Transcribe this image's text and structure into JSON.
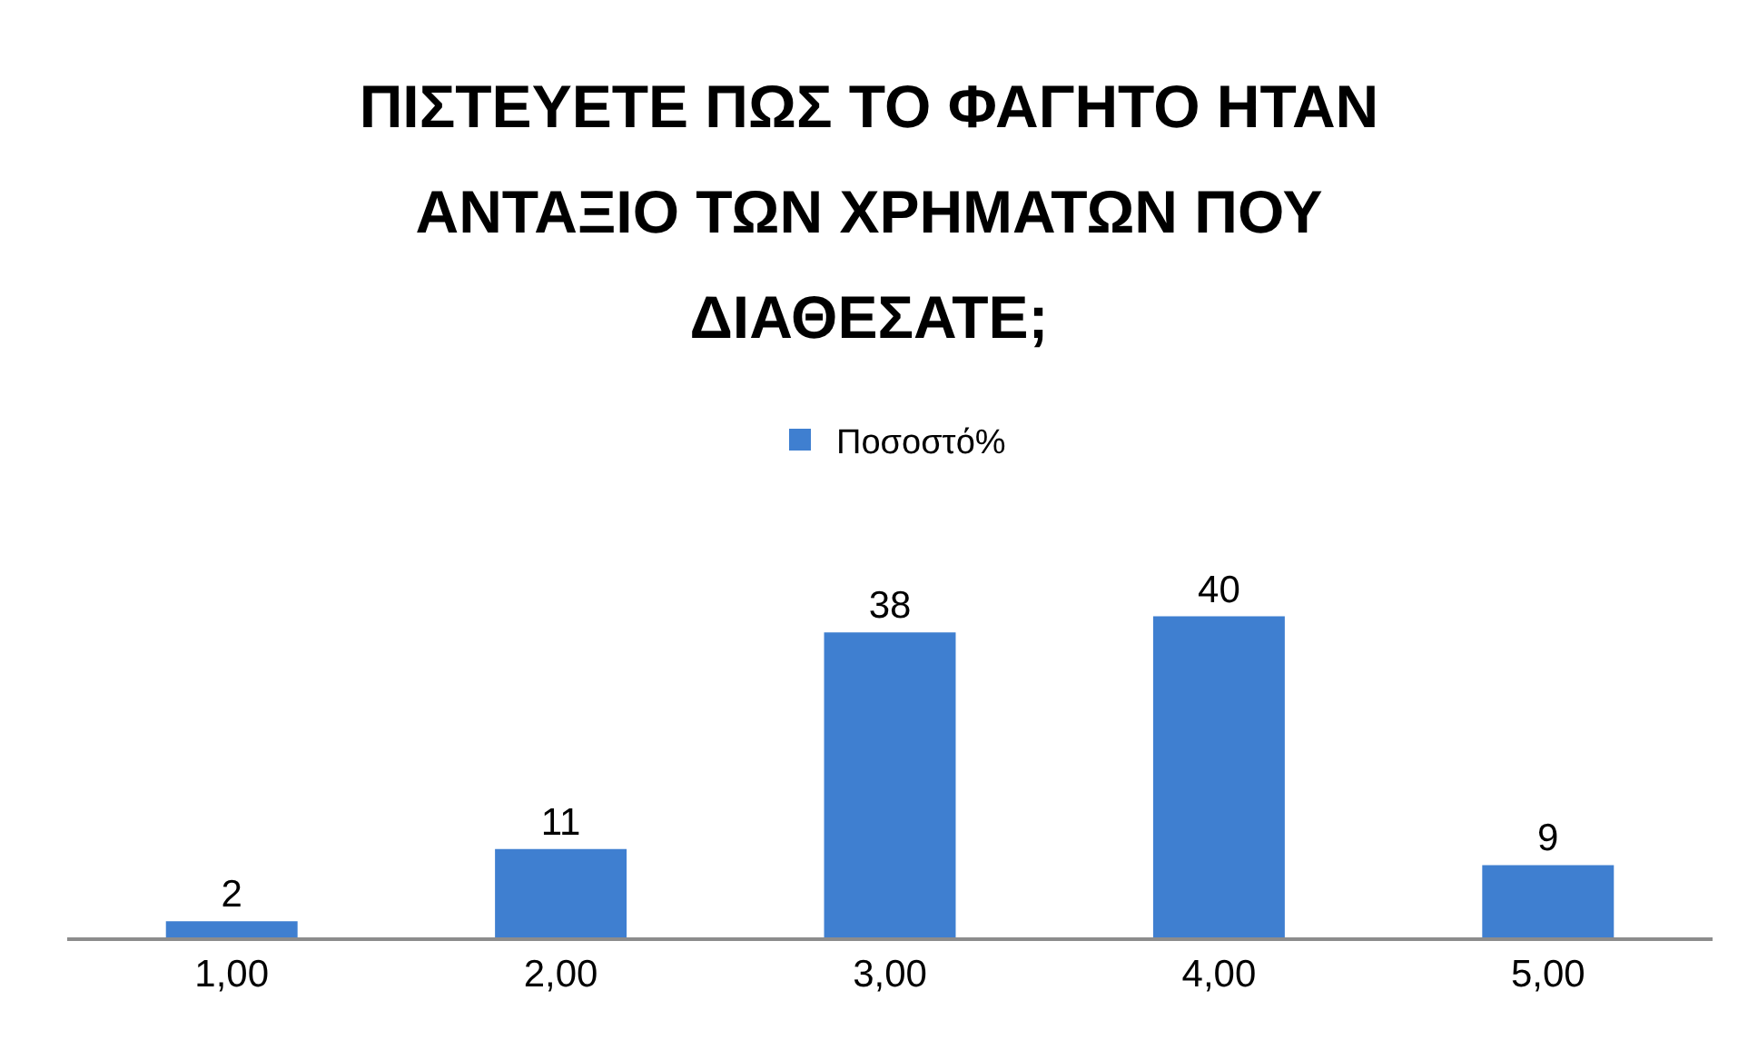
{
  "chart_data": {
    "type": "bar",
    "title": "ΠΙΣΤΕΥΕΤΕ ΠΩΣ ΤΟ ΦΑΓΗΤΟ ΗΤΑΝ ΑΝΤΑΞΙΟ ΤΩΝ ΧΡΗΜΑΤΩΝ ΠΟΥ ΔΙΑΘΕΣΑΤΕ;",
    "categories": [
      "1,00",
      "2,00",
      "3,00",
      "4,00",
      "5,00"
    ],
    "series": [
      {
        "name": "Ποσοστό%",
        "color": "#3f7fd0",
        "values": [
          2,
          11,
          38,
          40,
          9
        ]
      }
    ],
    "data_labels": true,
    "legend": "top"
  }
}
